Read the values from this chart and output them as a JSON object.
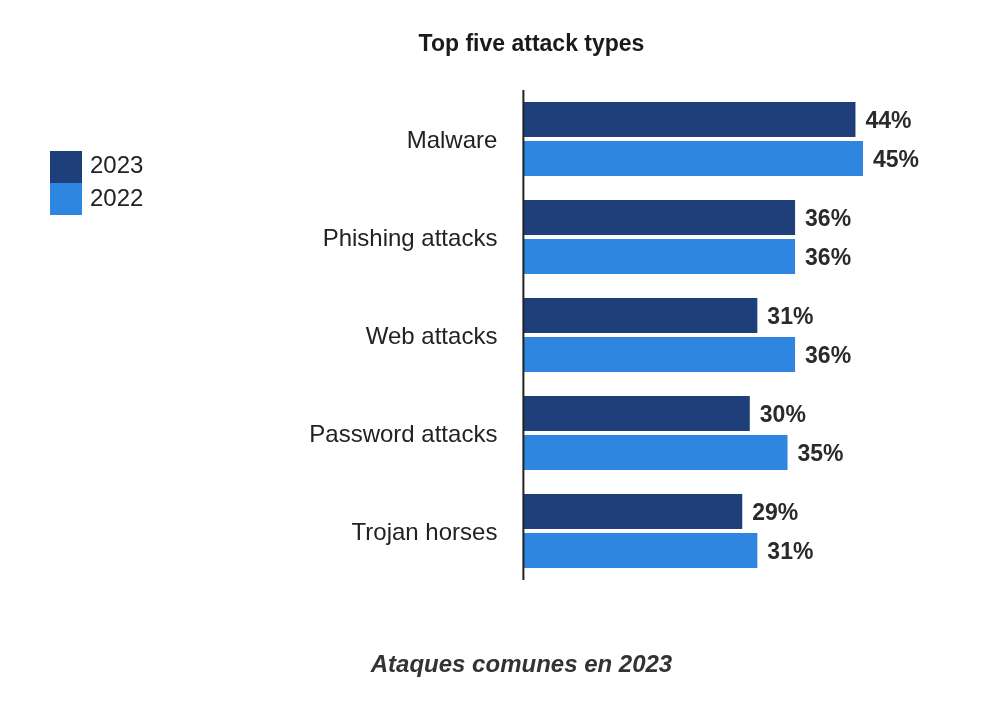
{
  "chart_data": {
    "type": "bar",
    "orientation": "horizontal",
    "title": "Top five attack types",
    "categories": [
      "Malware",
      "Phishing attacks",
      "Web attacks",
      "Password attacks",
      "Trojan horses"
    ],
    "series": [
      {
        "name": "2023",
        "color": "#1f3f7a",
        "values": [
          44,
          36,
          31,
          30,
          29
        ],
        "value_labels": [
          "44%",
          "36%",
          "31%",
          "30%",
          "29%"
        ]
      },
      {
        "name": "2022",
        "color": "#2f86e0",
        "values": [
          45,
          36,
          36,
          35,
          31
        ],
        "value_labels": [
          "45%",
          "36%",
          "36%",
          "35%",
          "31%"
        ]
      }
    ],
    "legend": "top left",
    "grid": false,
    "tick_labels": "y",
    "annotations": [
      "Ataques comunes en 2023"
    ]
  }
}
